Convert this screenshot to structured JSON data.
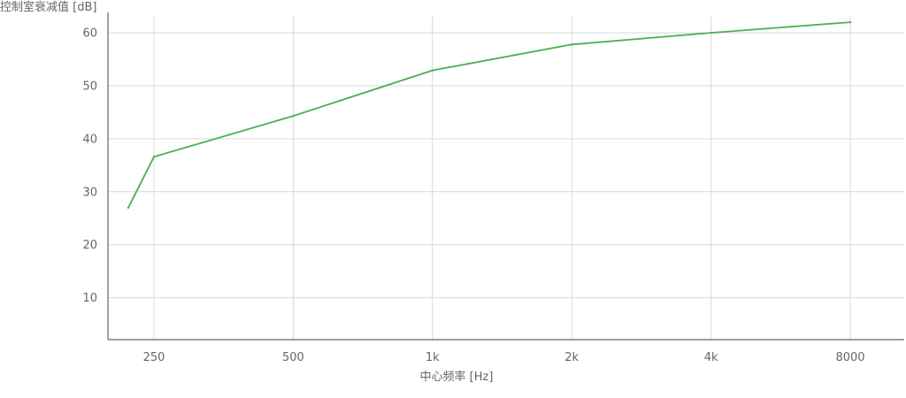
{
  "chart_data": {
    "type": "line",
    "ylabel": "控制室衰减值 [dB]",
    "xlabel": "中心频率 [Hz]",
    "x_ticks": [
      "250",
      "500",
      "1k",
      "2k",
      "4k",
      "8000"
    ],
    "y_ticks": [
      10,
      20,
      30,
      40,
      50,
      60
    ],
    "ylim": [
      0,
      64
    ],
    "x_scale": "log2",
    "grid": true,
    "series": [
      {
        "color": "#4caf50",
        "points": [
          {
            "x": 220,
            "y": 27
          },
          {
            "x": 250,
            "y": 36.6
          },
          {
            "x": 500,
            "y": 44.3
          },
          {
            "x": 1000,
            "y": 52.9
          },
          {
            "x": 2000,
            "y": 57.8
          },
          {
            "x": 4000,
            "y": 60
          },
          {
            "x": 8000,
            "y": 62
          }
        ]
      }
    ]
  }
}
